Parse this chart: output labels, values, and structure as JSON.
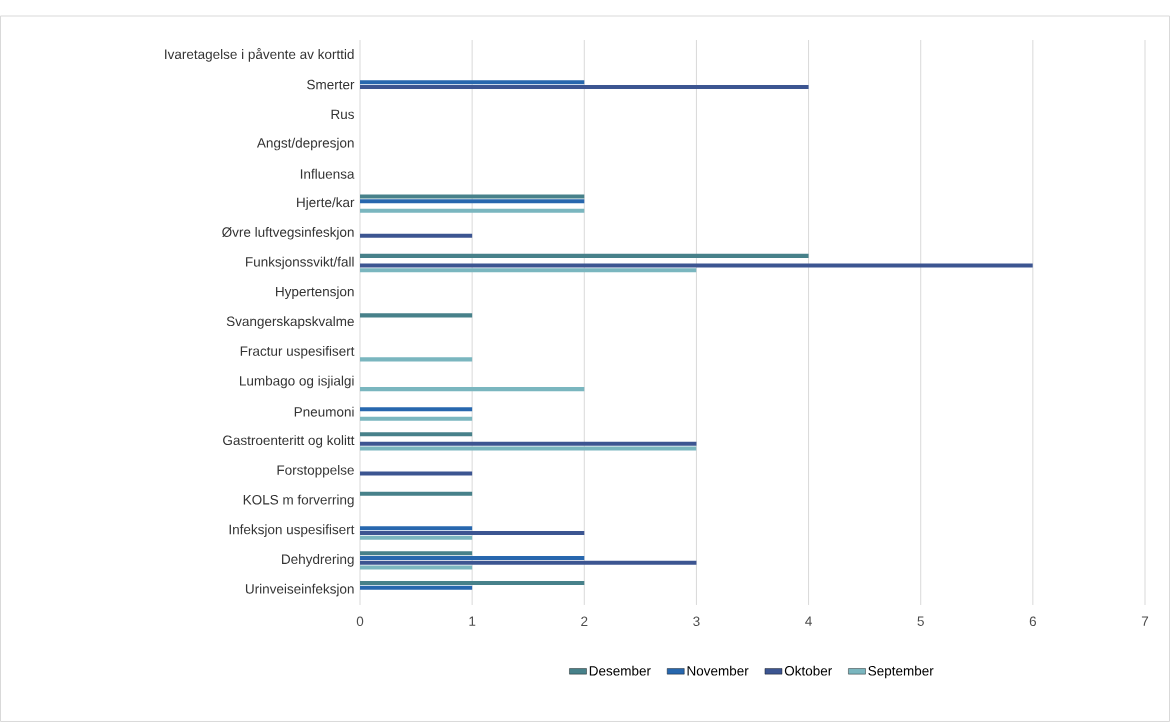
{
  "chart_data": {
    "type": "bar",
    "orientation": "horizontal",
    "categories": [
      "Ivaretagelse i påvente av korttid",
      "Smerter",
      "Rus",
      "Angst/depresjon",
      "Influensa",
      "Hjerte/kar",
      "Øvre luftvegsinfeskjon",
      "Funksjonssvikt/fall",
      "Hypertensjon",
      "Svangerskapskvalme",
      "Fractur uspesifisert",
      "Lumbago og isjialgi",
      "Pneumoni",
      "Gastroenteritt og kolitt",
      "Forstoppelse",
      "KOLS m forverring",
      "Infeksjon uspesifisert",
      "Dehydrering",
      "Urinveiseinfeksjon"
    ],
    "series": [
      {
        "name": "Desember",
        "color": "#47818a",
        "values": [
          null,
          null,
          null,
          null,
          null,
          2,
          null,
          4,
          null,
          1,
          null,
          null,
          null,
          1,
          null,
          1,
          null,
          1,
          2
        ]
      },
      {
        "name": "November",
        "color": "#2767ae",
        "values": [
          null,
          2,
          null,
          null,
          null,
          2,
          null,
          null,
          null,
          null,
          null,
          null,
          1,
          null,
          null,
          null,
          1,
          2,
          1
        ]
      },
      {
        "name": "Oktober",
        "color": "#3c5591",
        "values": [
          null,
          4,
          null,
          null,
          null,
          null,
          1,
          6,
          null,
          null,
          null,
          null,
          null,
          3,
          1,
          null,
          2,
          3,
          null
        ]
      },
      {
        "name": "September",
        "color": "#7ab6bf",
        "values": [
          null,
          null,
          null,
          null,
          null,
          2,
          null,
          3,
          null,
          null,
          1,
          2,
          1,
          3,
          null,
          null,
          1,
          1,
          null
        ]
      }
    ],
    "xlim": [
      0,
      7
    ],
    "xticks": [
      0,
      1,
      2,
      3,
      4,
      5,
      6,
      7
    ],
    "grid": "x",
    "legend": "bottom"
  }
}
